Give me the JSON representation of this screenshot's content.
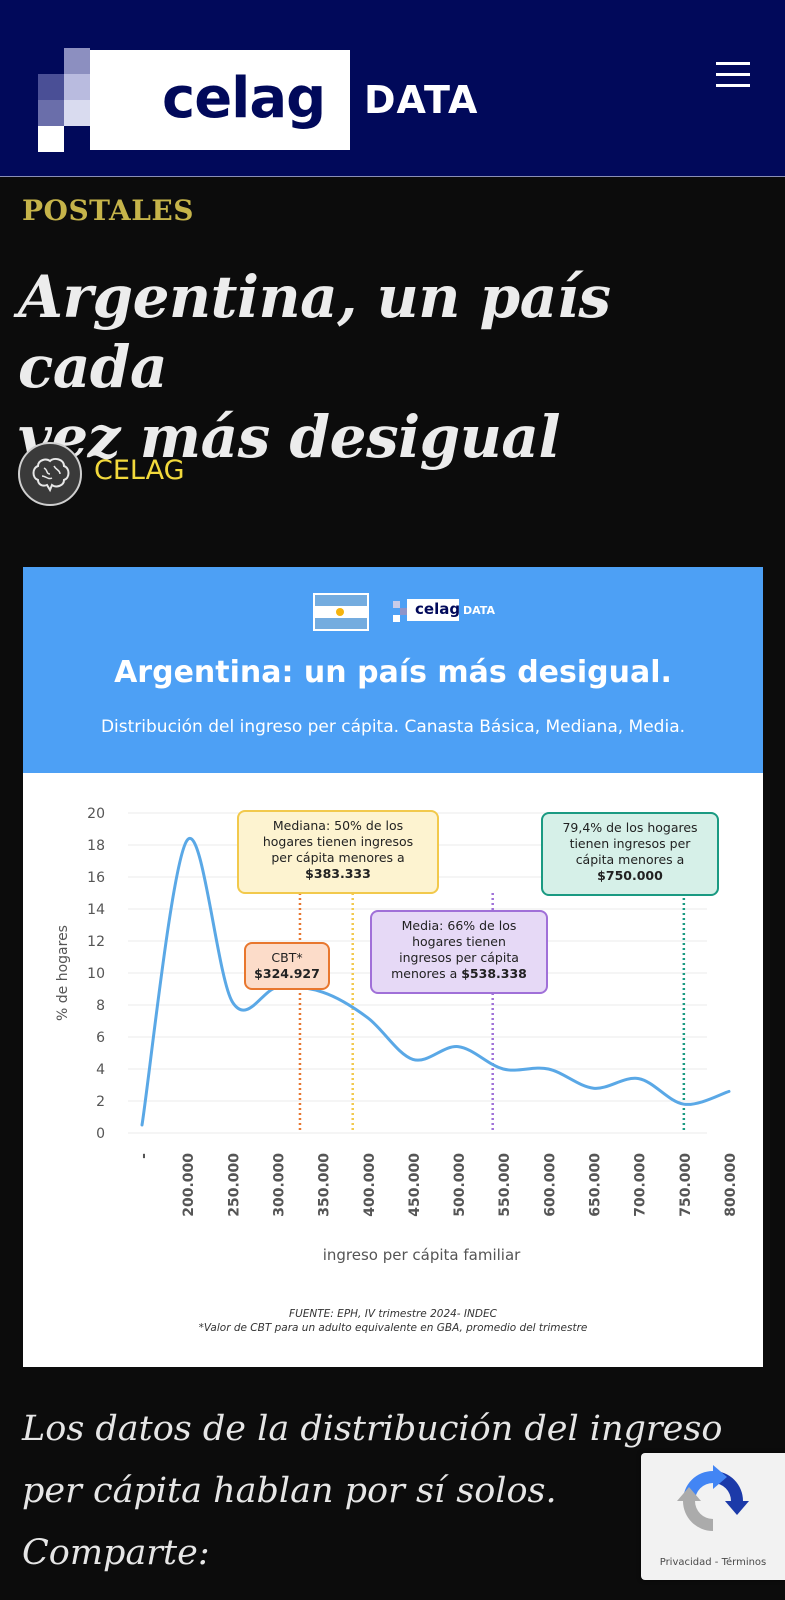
{
  "header": {
    "logo_word": "celag",
    "logo_suffix": "DATA",
    "menu_icon": "hamburger-menu-icon",
    "brand_color": "#01095a"
  },
  "article": {
    "category": "POSTALES",
    "title_line1": "Argentina, un país cada",
    "title_line2": "vez más desigual",
    "author": "CELAG",
    "lead_line1": "Los datos de la distribución del ingreso",
    "lead_line2": "per cápita hablan por sí solos.",
    "lead_line3": "Comparte:"
  },
  "infographic": {
    "mini_logo_word": "celag",
    "mini_logo_suffix": "DATA",
    "title": "Argentina: un país más desigual.",
    "subtitle": "Distribución del ingreso per cápita. Canasta Básica, Mediana, Media.",
    "source_line1": "FUENTE: EPH, IV trimestre 2024- INDEC",
    "source_line2": "*Valor de CBT para un adulto equivalente en GBA, promedio del trimestre"
  },
  "chart_data": {
    "type": "line",
    "xlabel": "ingreso per cápita familiar",
    "ylabel": "% de hogares",
    "ylim": [
      0,
      20
    ],
    "yticks": [
      0,
      2,
      4,
      6,
      8,
      10,
      12,
      14,
      16,
      18,
      20
    ],
    "grid": true,
    "xticks": [
      "-",
      "200.000",
      "250.000",
      "300.000",
      "350.000",
      "400.000",
      "450.000",
      "500.000",
      "550.000",
      "600.000",
      "650.000",
      "700.000",
      "750.000",
      "800.000"
    ],
    "xlim": [
      150000,
      800000
    ],
    "series": [
      {
        "color": "#5aa8e6",
        "x": [
          150000,
          200000,
          250000,
          300000,
          350000,
          400000,
          450000,
          500000,
          550000,
          600000,
          650000,
          700000,
          750000,
          800000
        ],
        "y": [
          0.5,
          18.3,
          8.2,
          9.1,
          8.8,
          7.2,
          4.6,
          5.4,
          4.0,
          4.0,
          2.8,
          3.4,
          1.8,
          2.6
        ]
      }
    ],
    "annotations": [
      {
        "x": 324927,
        "color": "#e8772e",
        "fill": "#fcdcc9",
        "line1": "CBT*",
        "line2": "",
        "line3": "",
        "value_prefix": "",
        "value": "$324.927"
      },
      {
        "x": 383333,
        "color": "#f2c94c",
        "fill": "#fdf3d0",
        "line1": "Mediana: 50% de los",
        "line2": "hogares tienen ingresos",
        "line3": "per cápita menores a",
        "value_prefix": "",
        "value": "$383.333"
      },
      {
        "x": 538338,
        "color": "#a070d8",
        "fill": "#e6d9f6",
        "line1": "Media: 66% de los",
        "line2": "hogares tienen",
        "line3": "ingresos per cápita",
        "value_prefix": "menores a ",
        "value": "$538.338"
      },
      {
        "x": 750000,
        "color": "#1a9a82",
        "fill": "#d6f0e8",
        "line1": "79,4% de los hogares",
        "line2": "tienen ingresos per",
        "line3": "cápita menores a",
        "value_prefix": "",
        "value": "$750.000"
      }
    ]
  },
  "recaptcha": {
    "links": "Privacidad - Términos",
    "icon": "recaptcha-icon"
  }
}
